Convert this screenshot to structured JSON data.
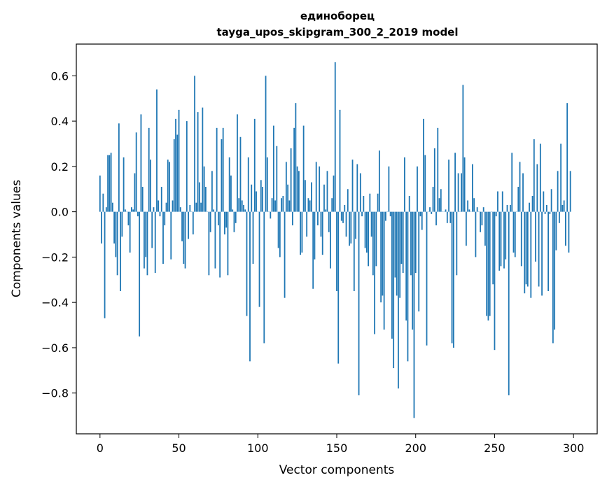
{
  "chart_data": {
    "type": "bar",
    "title": "единоборец",
    "subtitle": "tayga_upos_skipgram_300_2_2019 model",
    "xlabel": "Vector components",
    "ylabel": "Components values",
    "xlim": [
      -15,
      315
    ],
    "ylim": [
      -0.98,
      0.74
    ],
    "xticks": [
      0,
      50,
      100,
      150,
      200,
      250,
      300
    ],
    "xtick_labels": [
      "0",
      "50",
      "100",
      "150",
      "200",
      "250",
      "300"
    ],
    "yticks": [
      -0.8,
      -0.6,
      -0.4,
      -0.2,
      0.0,
      0.2,
      0.4,
      0.6
    ],
    "ytick_labels": [
      "−0.8",
      "−0.6",
      "−0.4",
      "−0.2",
      "0.0",
      "0.2",
      "0.4",
      "0.6"
    ],
    "bar_color": "#1f77b4",
    "values": [
      0.16,
      -0.14,
      0.08,
      -0.47,
      0.02,
      0.25,
      0.25,
      0.26,
      0.04,
      -0.14,
      -0.2,
      -0.28,
      0.39,
      -0.35,
      -0.11,
      0.24,
      0.01,
      0.0,
      -0.06,
      -0.18,
      0.02,
      0.01,
      0.17,
      0.35,
      -0.02,
      -0.55,
      0.43,
      0.11,
      -0.25,
      -0.2,
      -0.28,
      0.37,
      0.23,
      -0.16,
      0.02,
      -0.27,
      0.54,
      0.05,
      -0.02,
      0.11,
      -0.23,
      -0.06,
      0.04,
      0.23,
      0.22,
      -0.21,
      0.05,
      0.32,
      0.41,
      0.34,
      0.45,
      0.02,
      -0.13,
      -0.23,
      -0.25,
      0.4,
      -0.12,
      0.03,
      0.0,
      -0.1,
      0.6,
      0.04,
      0.44,
      0.13,
      0.04,
      0.46,
      0.2,
      0.11,
      0.0,
      -0.28,
      -0.09,
      0.18,
      0.01,
      -0.25,
      0.37,
      -0.06,
      -0.29,
      0.32,
      0.37,
      -0.1,
      -0.07,
      -0.28,
      0.24,
      0.16,
      0.01,
      -0.09,
      -0.05,
      0.43,
      0.06,
      0.33,
      0.05,
      0.03,
      0.01,
      -0.46,
      0.24,
      -0.66,
      0.12,
      -0.23,
      0.41,
      0.09,
      0.0,
      -0.42,
      0.14,
      0.11,
      -0.58,
      0.6,
      0.24,
      0.0,
      -0.03,
      0.06,
      0.38,
      0.05,
      0.29,
      -0.16,
      -0.2,
      0.06,
      0.07,
      -0.38,
      0.22,
      0.12,
      0.05,
      0.28,
      -0.06,
      0.37,
      0.48,
      0.2,
      0.18,
      -0.19,
      -0.18,
      0.38,
      0.14,
      -0.11,
      0.06,
      0.05,
      0.13,
      -0.34,
      -0.21,
      0.22,
      -0.06,
      0.2,
      -0.11,
      -0.19,
      0.12,
      0.01,
      0.18,
      -0.09,
      -0.25,
      0.06,
      0.16,
      0.66,
      -0.35,
      -0.67,
      0.45,
      -0.04,
      -0.05,
      0.03,
      -0.11,
      0.1,
      -0.15,
      -0.14,
      0.23,
      -0.35,
      -0.12,
      0.21,
      -0.81,
      0.17,
      -0.02,
      0.07,
      -0.16,
      -0.18,
      -0.24,
      0.08,
      -0.11,
      -0.28,
      -0.54,
      -0.24,
      0.08,
      0.27,
      -0.4,
      -0.37,
      -0.52,
      -0.04,
      0.0,
      0.2,
      -0.02,
      -0.56,
      -0.69,
      -0.29,
      -0.37,
      -0.78,
      -0.38,
      -0.23,
      -0.27,
      0.24,
      -0.48,
      -0.66,
      0.07,
      -0.28,
      -0.52,
      -0.91,
      -0.27,
      0.2,
      -0.44,
      -0.02,
      -0.08,
      0.41,
      0.25,
      -0.59,
      0.0,
      0.02,
      -0.01,
      0.11,
      0.28,
      -0.06,
      0.37,
      0.06,
      0.1,
      0.0,
      0.0,
      0.01,
      -0.05,
      0.23,
      -0.05,
      -0.58,
      -0.6,
      0.26,
      -0.28,
      0.17,
      0.0,
      0.17,
      0.56,
      0.24,
      -0.15,
      0.05,
      0.01,
      0.0,
      0.21,
      0.06,
      -0.2,
      0.02,
      0.0,
      -0.09,
      -0.06,
      0.02,
      -0.15,
      -0.46,
      -0.48,
      -0.46,
      0.0,
      -0.32,
      -0.61,
      -0.02,
      0.09,
      -0.26,
      -0.24,
      0.09,
      -0.25,
      -0.21,
      0.03,
      -0.81,
      0.03,
      0.26,
      -0.18,
      -0.2,
      0.0,
      0.11,
      0.22,
      -0.24,
      0.17,
      -0.36,
      -0.32,
      -0.33,
      0.04,
      -0.38,
      0.07,
      0.32,
      -0.22,
      0.21,
      -0.33,
      0.3,
      -0.37,
      0.09,
      -0.01,
      0.03,
      -0.35,
      -0.01,
      0.1,
      -0.58,
      -0.52,
      -0.17,
      0.18,
      -0.05,
      0.3,
      0.03,
      0.05,
      -0.15,
      0.48,
      -0.18,
      0.18
    ]
  }
}
